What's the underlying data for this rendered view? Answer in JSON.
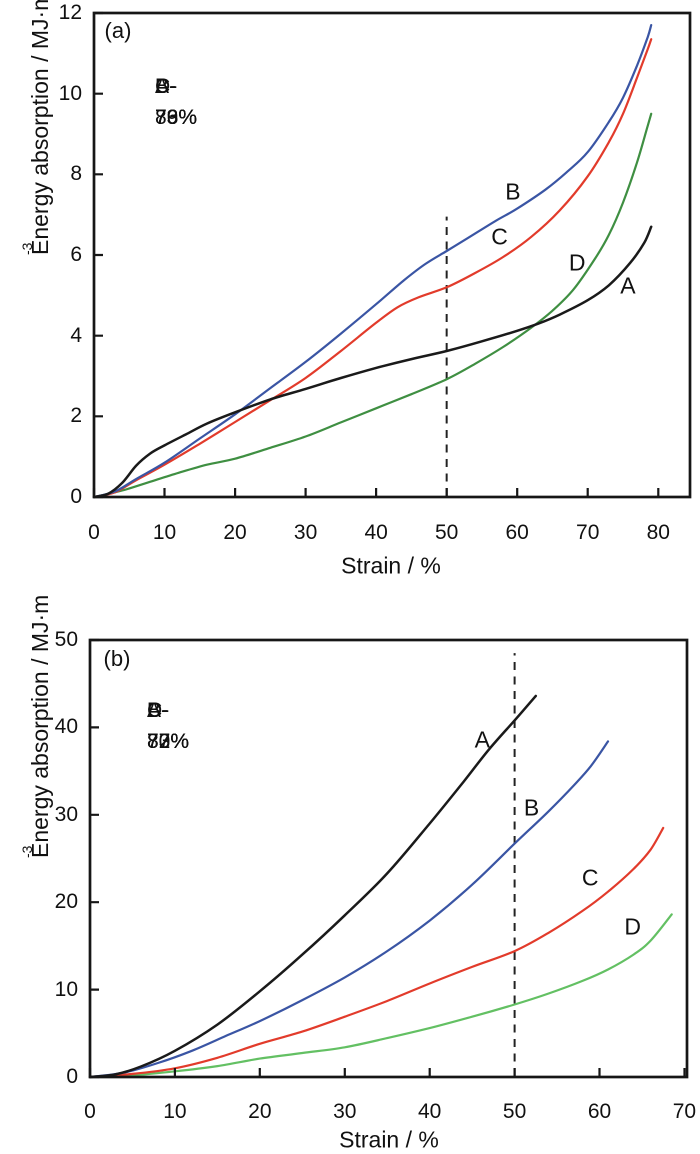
{
  "figure_background": "#ffffff",
  "axis_color": "#161616",
  "chart_data": [
    {
      "type": "line",
      "panel": "(a)",
      "title": "",
      "xlabel": "Strain / %",
      "ylabel": "Energy absorption / MJ·m⁻³",
      "ylabel_base": "Energy absorption / MJ·m",
      "ylabel_sup": "-3",
      "xlim": [
        0,
        84.5
      ],
      "ylim": [
        0,
        12
      ],
      "x_ticks": [
        0,
        10,
        20,
        30,
        40,
        50,
        60,
        70,
        80
      ],
      "y_ticks": [
        0,
        2,
        4,
        6,
        8,
        10,
        12
      ],
      "grid": false,
      "legend_lines": [
        "A-73%",
        "B-76%",
        "C-79%",
        "D-83%"
      ],
      "legend_position": "upper-left-inside",
      "dashed_line": {
        "x": 50,
        "y_top": 6.95
      },
      "series": [
        {
          "name": "D",
          "label": "D",
          "color": "#3f8f42",
          "label_at": [
            68.5,
            5.8
          ],
          "points": [
            [
              0,
              0
            ],
            [
              4,
              0.16
            ],
            [
              8,
              0.38
            ],
            [
              12,
              0.6
            ],
            [
              16,
              0.8
            ],
            [
              20,
              0.95
            ],
            [
              25,
              1.22
            ],
            [
              30,
              1.5
            ],
            [
              35,
              1.85
            ],
            [
              40,
              2.2
            ],
            [
              45,
              2.55
            ],
            [
              50,
              2.92
            ],
            [
              54,
              3.3
            ],
            [
              58,
              3.72
            ],
            [
              62,
              4.2
            ],
            [
              65,
              4.62
            ],
            [
              68,
              5.15
            ],
            [
              71,
              5.9
            ],
            [
              73,
              6.5
            ],
            [
              75,
              7.3
            ],
            [
              77,
              8.3
            ],
            [
              78.5,
              9.2
            ],
            [
              79,
              9.5
            ]
          ]
        },
        {
          "name": "C",
          "label": "C",
          "color": "#e23b2b",
          "label_at": [
            57.5,
            6.45
          ],
          "points": [
            [
              0,
              0
            ],
            [
              3,
              0.12
            ],
            [
              6,
              0.42
            ],
            [
              10,
              0.8
            ],
            [
              15,
              1.32
            ],
            [
              20,
              1.86
            ],
            [
              25,
              2.4
            ],
            [
              30,
              2.95
            ],
            [
              35,
              3.62
            ],
            [
              40,
              4.32
            ],
            [
              43,
              4.7
            ],
            [
              46,
              4.95
            ],
            [
              50,
              5.2
            ],
            [
              54,
              5.55
            ],
            [
              58,
              5.95
            ],
            [
              62,
              6.45
            ],
            [
              66,
              7.1
            ],
            [
              70,
              7.95
            ],
            [
              73,
              8.8
            ],
            [
              75,
              9.5
            ],
            [
              77,
              10.4
            ],
            [
              78.5,
              11.1
            ],
            [
              79,
              11.35
            ]
          ]
        },
        {
          "name": "B",
          "label": "B",
          "color": "#3a55a4",
          "label_at": [
            59.4,
            7.56
          ],
          "points": [
            [
              0,
              0
            ],
            [
              3,
              0.14
            ],
            [
              6,
              0.45
            ],
            [
              10,
              0.85
            ],
            [
              15,
              1.45
            ],
            [
              20,
              2.05
            ],
            [
              25,
              2.7
            ],
            [
              30,
              3.35
            ],
            [
              35,
              4.05
            ],
            [
              40,
              4.78
            ],
            [
              44,
              5.38
            ],
            [
              47,
              5.78
            ],
            [
              50,
              6.1
            ],
            [
              53,
              6.42
            ],
            [
              57,
              6.85
            ],
            [
              60,
              7.15
            ],
            [
              64,
              7.62
            ],
            [
              67,
              8.05
            ],
            [
              70,
              8.55
            ],
            [
              73,
              9.3
            ],
            [
              75,
              9.9
            ],
            [
              77,
              10.7
            ],
            [
              78.5,
              11.4
            ],
            [
              79,
              11.7
            ]
          ]
        },
        {
          "name": "A",
          "label": "A",
          "color": "#1a1a1a",
          "label_at": [
            75.7,
            5.22
          ],
          "points": [
            [
              0,
              0
            ],
            [
              2,
              0.08
            ],
            [
              4,
              0.35
            ],
            [
              6,
              0.78
            ],
            [
              8,
              1.08
            ],
            [
              10,
              1.28
            ],
            [
              13,
              1.55
            ],
            [
              16,
              1.82
            ],
            [
              20,
              2.1
            ],
            [
              25,
              2.42
            ],
            [
              30,
              2.68
            ],
            [
              35,
              2.95
            ],
            [
              40,
              3.2
            ],
            [
              45,
              3.42
            ],
            [
              50,
              3.62
            ],
            [
              55,
              3.86
            ],
            [
              60,
              4.12
            ],
            [
              63,
              4.3
            ],
            [
              66,
              4.52
            ],
            [
              70,
              4.88
            ],
            [
              73,
              5.25
            ],
            [
              76,
              5.8
            ],
            [
              78,
              6.3
            ],
            [
              79,
              6.7
            ]
          ]
        }
      ]
    },
    {
      "type": "line",
      "panel": "(b)",
      "title": "",
      "xlabel": "Strain / %",
      "ylabel": "Energy absorption / MJ·m⁻³",
      "ylabel_base": "Energy absorption / MJ·m",
      "ylabel_sup": "-3",
      "xlim": [
        0,
        70.3
      ],
      "ylim": [
        0,
        50
      ],
      "x_ticks": [
        0,
        10,
        20,
        30,
        40,
        50,
        60,
        70
      ],
      "y_ticks": [
        0,
        10,
        20,
        30,
        40,
        50
      ],
      "grid": false,
      "legend_lines": [
        "A-72%",
        "B-77%",
        "C-80%",
        "D-83%"
      ],
      "legend_position": "upper-left-inside",
      "dashed_line": {
        "x": 50,
        "y_top": 48.5
      },
      "series": [
        {
          "name": "D",
          "label": "D",
          "color": "#63c063",
          "label_at": [
            63.9,
            17.2
          ],
          "points": [
            [
              0,
              0
            ],
            [
              5,
              0.2
            ],
            [
              10,
              0.65
            ],
            [
              15,
              1.25
            ],
            [
              20,
              2.1
            ],
            [
              25,
              2.75
            ],
            [
              30,
              3.4
            ],
            [
              35,
              4.45
            ],
            [
              40,
              5.6
            ],
            [
              45,
              6.9
            ],
            [
              50,
              8.3
            ],
            [
              54,
              9.55
            ],
            [
              58,
              11.0
            ],
            [
              61,
              12.3
            ],
            [
              64,
              14.0
            ],
            [
              66,
              15.6
            ],
            [
              68.5,
              18.6
            ]
          ]
        },
        {
          "name": "C",
          "label": "C",
          "color": "#e23b2b",
          "label_at": [
            58.9,
            22.8
          ],
          "points": [
            [
              0,
              0
            ],
            [
              5,
              0.35
            ],
            [
              10,
              1.0
            ],
            [
              15,
              2.2
            ],
            [
              20,
              3.8
            ],
            [
              25,
              5.2
            ],
            [
              30,
              6.9
            ],
            [
              35,
              8.7
            ],
            [
              40,
              10.7
            ],
            [
              45,
              12.6
            ],
            [
              50,
              14.4
            ],
            [
              54,
              16.5
            ],
            [
              58,
              19.0
            ],
            [
              61,
              21.2
            ],
            [
              64,
              23.8
            ],
            [
              66,
              26.0
            ],
            [
              67.5,
              28.5
            ]
          ]
        },
        {
          "name": "B",
          "label": "B",
          "color": "#3a55a4",
          "label_at": [
            52.0,
            30.8
          ],
          "points": [
            [
              0,
              0
            ],
            [
              4,
              0.5
            ],
            [
              8,
              1.6
            ],
            [
              12,
              3.0
            ],
            [
              16,
              4.7
            ],
            [
              20,
              6.4
            ],
            [
              25,
              8.8
            ],
            [
              30,
              11.4
            ],
            [
              35,
              14.4
            ],
            [
              40,
              17.9
            ],
            [
              45,
              22.0
            ],
            [
              50,
              26.7
            ],
            [
              54,
              30.4
            ],
            [
              57,
              33.4
            ],
            [
              59,
              35.6
            ],
            [
              61,
              38.4
            ]
          ]
        },
        {
          "name": "A",
          "label": "A",
          "color": "#1a1a1a",
          "label_at": [
            46.2,
            38.6
          ],
          "points": [
            [
              0,
              0
            ],
            [
              3,
              0.3
            ],
            [
              6,
              1.2
            ],
            [
              10,
              3.0
            ],
            [
              15,
              6.0
            ],
            [
              20,
              9.8
            ],
            [
              25,
              14.0
            ],
            [
              30,
              18.5
            ],
            [
              35,
              23.3
            ],
            [
              40,
              29.0
            ],
            [
              44,
              33.8
            ],
            [
              47,
              37.5
            ],
            [
              50,
              40.8
            ],
            [
              52.5,
              43.6
            ]
          ]
        }
      ]
    }
  ]
}
